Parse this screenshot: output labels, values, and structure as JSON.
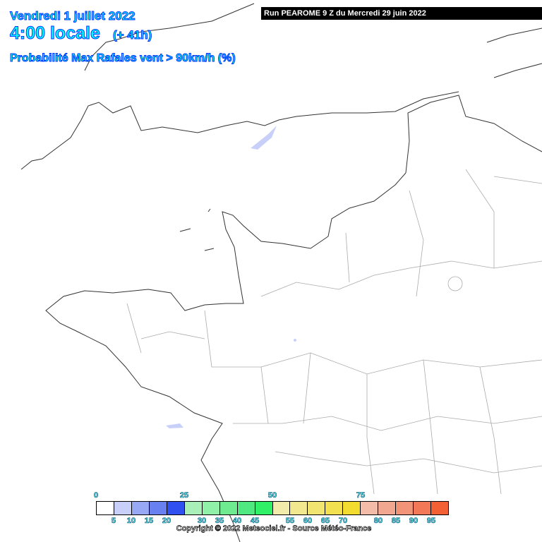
{
  "header": {
    "date": "Vendredi 1 juillet 2022",
    "time": "4:00 locale",
    "offset": "(+ 41h)",
    "parameter": "Probabilité Max Rafales vent > 90km/h (%)",
    "run": "Run PEAROME 9 Z du Mercredi 29 juin 2022"
  },
  "legend": {
    "colors": [
      "#ffffff",
      "#c8d0fa",
      "#98a8f5",
      "#6880f0",
      "#3050f0",
      "#a8f0b8",
      "#90f0a8",
      "#70ea90",
      "#50e880",
      "#30f068",
      "#f2ecaa",
      "#f2e890",
      "#f2e470",
      "#f2e050",
      "#f2dc30",
      "#f2bca8",
      "#f2a890",
      "#f29478",
      "#f27858",
      "#f26034"
    ],
    "top_labels": [
      "0",
      "25",
      "50",
      "75"
    ],
    "bottom_labels": [
      "5",
      "10",
      "15",
      "20",
      "30",
      "35",
      "40",
      "45",
      "55",
      "60",
      "65",
      "70",
      "80",
      "85",
      "90",
      "95"
    ]
  },
  "copyright": "Copyright © 2022 Meteociel.fr - Source Météo-France",
  "map": {
    "coast_color": "#333333",
    "border_color": "#aaaaaa",
    "water_color": "#c8d0fa"
  }
}
